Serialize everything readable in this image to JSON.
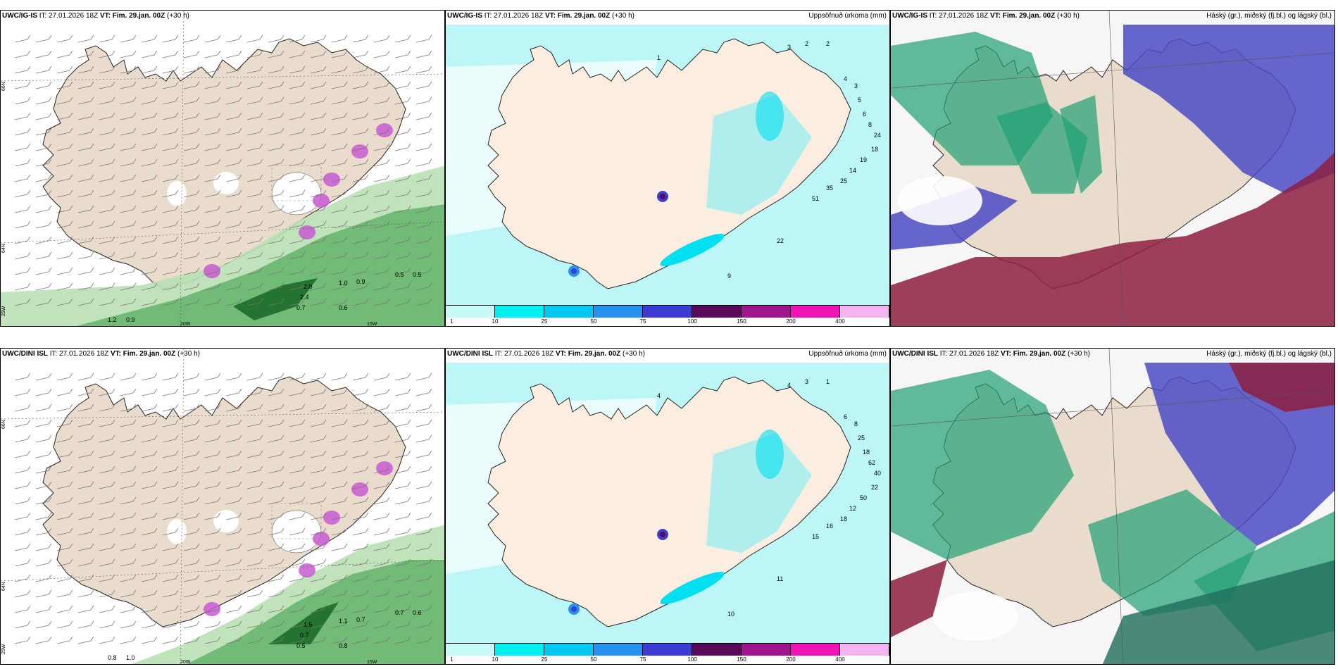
{
  "rows": [
    {
      "panels": [
        {
          "model": "UWC/IG-IS",
          "it": "IT: 27.01.2026 18Z",
          "vt": "VT: Fim. 29.jan. 00Z",
          "lead": "(+30 h)",
          "right_title": "",
          "kind": "wind"
        },
        {
          "model": "UWC/IG-IS",
          "it": "IT: 27.01.2026 18Z",
          "vt": "VT: Fim. 29.jan. 00Z",
          "lead": "(+30 h)",
          "right_title": "Uppsöfnuð úrkoma (mm)",
          "kind": "precip"
        },
        {
          "model": "UWC/IG-IS",
          "it": "IT: 27.01.2026 18Z",
          "vt": "VT: Fim. 29.jan. 00Z",
          "lead": "(+30 h)",
          "right_title": "Háský (gr.), miðský (fj.bl.) og lágský (bl.)",
          "kind": "cloud"
        }
      ]
    },
    {
      "panels": [
        {
          "model": "UWC/DINI ISL",
          "it": "IT: 27.01.2026 18Z",
          "vt": "VT: Fim. 29.jan. 00Z",
          "lead": "(+30 h)",
          "right_title": "",
          "kind": "wind"
        },
        {
          "model": "UWC/DINI ISL",
          "it": "IT: 27.01.2026 18Z",
          "vt": "VT: Fim. 29.jan. 00Z",
          "lead": "(+30 h)",
          "right_title": "Uppsöfnuð úrkoma (mm)",
          "kind": "precip"
        },
        {
          "model": "UWC/DINI ISL",
          "it": "IT: 27.01.2026 18Z",
          "vt": "VT: Fim. 29.jan. 00Z",
          "lead": "(+30 h)",
          "right_title": "Háský (gr.), miðský (fj.bl.) og lágský (bl.)",
          "kind": "cloud"
        }
      ]
    }
  ],
  "colorbar": {
    "ticks": [
      "1",
      "10",
      "25",
      "50",
      "75",
      "100",
      "150",
      "200",
      "400"
    ],
    "colors": [
      "#c8fafa",
      "#00f0f0",
      "#00c8f0",
      "#2890f0",
      "#3c3cd2",
      "#5a0a5a",
      "#a0148c",
      "#f014b4",
      "#f5b4f0"
    ]
  },
  "coord_labels": {
    "lat66": "66N",
    "lat64": "64N",
    "lat_bottom": "25W",
    "lon20": "20W",
    "lon15": "15W"
  },
  "precip_labels_top": [
    "1",
    "3",
    "2",
    "2",
    "4",
    "3",
    "5",
    "6",
    "8",
    "24",
    "18",
    "19",
    "14",
    "25",
    "35",
    "51",
    "22",
    "9"
  ],
  "precip_labels_bottom": [
    "4",
    "4",
    "3",
    "1",
    "6",
    "8",
    "25",
    "18",
    "62",
    "40",
    "22",
    "50",
    "12",
    "18",
    "16",
    "15",
    "11",
    "10"
  ],
  "wind_labels_top": [
    "0.5",
    "0.5",
    "1.0",
    "0.9",
    "2.0",
    "2.4",
    "1.2",
    "0.9",
    "0.7",
    "0.6"
  ],
  "wind_labels_bottom": [
    "0.7",
    "0.6",
    "1.1",
    "0.7",
    "1.5",
    "0.7",
    "0.8",
    "1.0",
    "0.5",
    "0.8"
  ]
}
